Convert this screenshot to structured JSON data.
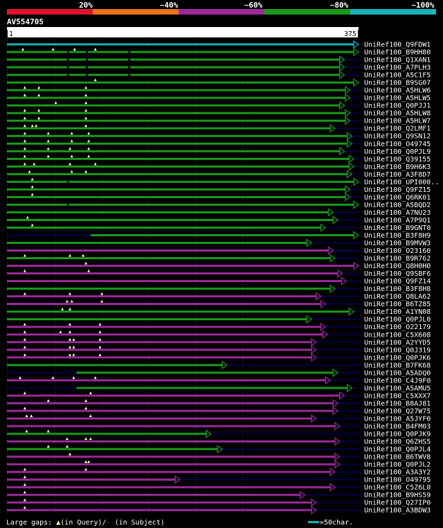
{
  "legend": {
    "bands": [
      {
        "label": "20%",
        "color": "#e0142e"
      },
      {
        "label": "~40%",
        "color": "#e8731a"
      },
      {
        "label": "~60%",
        "color": "#9b2a9b"
      },
      {
        "label": "~80%",
        "color": "#1a9b1a"
      },
      {
        "label": "~100%",
        "color": "#17b3b8"
      }
    ]
  },
  "query": {
    "accession": "AV554705",
    "start": "1",
    "end": "375",
    "length": 375
  },
  "colors": {
    "green": "#1a9b1a",
    "purple": "#9b2a9b",
    "cyan": "#17b3b8",
    "gap": "#000088",
    "tri": "#ffffaa"
  },
  "hits": [
    {
      "name": "UniRef100_Q9FDW1",
      "color": "cyan",
      "start": 1,
      "end": 375,
      "gaps": [],
      "tris": []
    },
    {
      "name": "UniRef100_B9HH80",
      "color": "green",
      "start": 1,
      "end": 375,
      "gaps": [
        65,
        85,
        130
      ],
      "tris": [
        18,
        50,
        73,
        95
      ]
    },
    {
      "name": "UniRef100_Q1XAN1",
      "color": "green",
      "start": 1,
      "end": 360,
      "gaps": [
        65,
        85,
        130
      ],
      "tris": []
    },
    {
      "name": "UniRef100_A7PLH3",
      "color": "green",
      "start": 1,
      "end": 360,
      "gaps": [
        65,
        85,
        130
      ],
      "tris": []
    },
    {
      "name": "UniRef100_A5C1F5",
      "color": "green",
      "start": 1,
      "end": 360,
      "gaps": [
        65,
        85,
        130
      ],
      "tris": []
    },
    {
      "name": "UniRef100_B9SG07",
      "color": "green",
      "start": 1,
      "end": 375,
      "gaps": [],
      "tris": [
        95
      ]
    },
    {
      "name": "UniRef100_A5HLW6",
      "color": "green",
      "start": 1,
      "end": 366,
      "gaps": [],
      "tris": [
        20,
        35,
        85
      ]
    },
    {
      "name": "UniRef100_A5HLW5",
      "color": "green",
      "start": 1,
      "end": 366,
      "gaps": [],
      "tris": [
        20,
        35,
        85
      ]
    },
    {
      "name": "UniRef100_Q0PJJ1",
      "color": "green",
      "start": 1,
      "end": 360,
      "gaps": [],
      "tris": [
        53,
        85
      ]
    },
    {
      "name": "UniRef100_A5HLW8",
      "color": "green",
      "start": 1,
      "end": 366,
      "gaps": [],
      "tris": [
        20,
        35,
        85
      ]
    },
    {
      "name": "UniRef100_A5HLW7",
      "color": "green",
      "start": 1,
      "end": 366,
      "gaps": [],
      "tris": [
        20,
        35,
        85
      ]
    },
    {
      "name": "UniRef100_Q2LMF1",
      "color": "green",
      "start": 1,
      "end": 350,
      "gaps": [],
      "tris": [
        20,
        28,
        32,
        85
      ]
    },
    {
      "name": "UniRef100_Q9SN12",
      "color": "green",
      "start": 1,
      "end": 368,
      "gaps": [],
      "tris": [
        20,
        45,
        70,
        88
      ]
    },
    {
      "name": "UniRef100_O49745",
      "color": "green",
      "start": 1,
      "end": 368,
      "gaps": [],
      "tris": [
        20,
        45,
        70,
        88
      ]
    },
    {
      "name": "UniRef100_Q0PJL9",
      "color": "green",
      "start": 1,
      "end": 360,
      "gaps": [],
      "tris": [
        20,
        45,
        68,
        88
      ]
    },
    {
      "name": "UniRef100_Q39155",
      "color": "green",
      "start": 1,
      "end": 370,
      "gaps": [],
      "tris": [
        20,
        45,
        70,
        88
      ]
    },
    {
      "name": "UniRef100_B9H6K3",
      "color": "green",
      "start": 1,
      "end": 370,
      "gaps": [],
      "tris": [
        20,
        30,
        68,
        95
      ]
    },
    {
      "name": "UniRef100_A3F8D7",
      "color": "green",
      "start": 1,
      "end": 368,
      "gaps": [],
      "tris": [
        25,
        70,
        85
      ]
    },
    {
      "name": "UniRef100_UPI000..",
      "color": "green",
      "start": 1,
      "end": 375,
      "gaps": [
        65
      ],
      "tris": [
        28
      ]
    },
    {
      "name": "UniRef100_Q9FZ15",
      "color": "green",
      "start": 1,
      "end": 366,
      "gaps": [],
      "tris": [
        28
      ]
    },
    {
      "name": "UniRef100_Q6RK01",
      "color": "green",
      "start": 1,
      "end": 366,
      "gaps": [],
      "tris": [
        28
      ]
    },
    {
      "name": "UniRef100_A5BQD2",
      "color": "green",
      "start": 1,
      "end": 375,
      "gaps": [
        65
      ],
      "tris": []
    },
    {
      "name": "UniRef100_A7NU23",
      "color": "green",
      "start": 1,
      "end": 348,
      "gaps": [],
      "tris": []
    },
    {
      "name": "UniRef100_A7P9Q1",
      "color": "green",
      "start": 1,
      "end": 353,
      "gaps": [],
      "tris": [
        23
      ]
    },
    {
      "name": "UniRef100_B9GNT0",
      "color": "green",
      "start": 1,
      "end": 340,
      "gaps": [],
      "tris": [
        28
      ]
    },
    {
      "name": "UniRef100_B3F8H9",
      "color": "green",
      "start": 90,
      "end": 375,
      "gaps": [],
      "tris": []
    },
    {
      "name": "UniRef100_B9MVW3",
      "color": "green",
      "start": 1,
      "end": 325,
      "gaps": [],
      "tris": []
    },
    {
      "name": "UniRef100_O23160",
      "color": "purple",
      "start": 1,
      "end": 348,
      "gaps": [],
      "tris": []
    },
    {
      "name": "UniRef100_B9R762",
      "color": "green",
      "start": 1,
      "end": 350,
      "gaps": [],
      "tris": [
        20,
        68,
        82
      ]
    },
    {
      "name": "UniRef100_Q8H0H0",
      "color": "purple",
      "start": 1,
      "end": 375,
      "gaps": [],
      "tris": [
        85
      ]
    },
    {
      "name": "UniRef100_Q9SBF6",
      "color": "purple",
      "start": 1,
      "end": 358,
      "gaps": [],
      "tris": [
        20,
        88
      ]
    },
    {
      "name": "UniRef100_Q9FZ14",
      "color": "purple",
      "start": 1,
      "end": 362,
      "gaps": [],
      "tris": []
    },
    {
      "name": "UniRef100_B3F8H8",
      "color": "green",
      "start": 1,
      "end": 350,
      "gaps": [],
      "tris": []
    },
    {
      "name": "UniRef100_Q8LA62",
      "color": "purple",
      "start": 1,
      "end": 335,
      "gaps": [],
      "tris": [
        20,
        68,
        102
      ]
    },
    {
      "name": "UniRef100_B6TZ85",
      "color": "purple",
      "start": 1,
      "end": 340,
      "gaps": [],
      "tris": [
        65,
        70,
        102
      ]
    },
    {
      "name": "UniRef100_A1YN08",
      "color": "green",
      "start": 1,
      "end": 370,
      "gaps": [],
      "tris": [
        60,
        68
      ]
    },
    {
      "name": "UniRef100_Q0PJL0",
      "color": "green",
      "start": 1,
      "end": 325,
      "gaps": [],
      "tris": []
    },
    {
      "name": "UniRef100_O22179",
      "color": "purple",
      "start": 1,
      "end": 340,
      "gaps": [],
      "tris": [
        20,
        68,
        100
      ]
    },
    {
      "name": "UniRef100_C5X608",
      "color": "purple",
      "start": 1,
      "end": 342,
      "gaps": [],
      "tris": [
        20,
        58,
        68,
        100
      ]
    },
    {
      "name": "UniRef100_A2YYD5",
      "color": "purple",
      "start": 1,
      "end": 330,
      "gaps": [],
      "tris": [
        20,
        68,
        72,
        100
      ]
    },
    {
      "name": "UniRef100_Q0J319",
      "color": "purple",
      "start": 1,
      "end": 330,
      "gaps": [],
      "tris": [
        20,
        68,
        72,
        100
      ]
    },
    {
      "name": "UniRef100_Q0PJK6",
      "color": "purple",
      "start": 1,
      "end": 330,
      "gaps": [],
      "tris": [
        20,
        68,
        72,
        100
      ]
    },
    {
      "name": "UniRef100_B7FK68",
      "color": "green",
      "start": 1,
      "end": 235,
      "gaps": [],
      "tris": []
    },
    {
      "name": "UniRef100_A5ADQ0",
      "color": "green",
      "start": 75,
      "end": 353,
      "gaps": [],
      "tris": []
    },
    {
      "name": "UniRef100_C4J9F0",
      "color": "purple",
      "start": 1,
      "end": 345,
      "gaps": [],
      "tris": [
        15,
        50,
        72,
        95
      ]
    },
    {
      "name": "UniRef100_A5AMU5",
      "color": "green",
      "start": 75,
      "end": 368,
      "gaps": [],
      "tris": []
    },
    {
      "name": "UniRef100_C5XXX7",
      "color": "purple",
      "start": 1,
      "end": 360,
      "gaps": [],
      "tris": [
        20,
        90
      ]
    },
    {
      "name": "UniRef100_B8AJ81",
      "color": "purple",
      "start": 1,
      "end": 353,
      "gaps": [],
      "tris": [
        45,
        85
      ]
    },
    {
      "name": "UniRef100_Q27W75",
      "color": "purple",
      "start": 1,
      "end": 353,
      "gaps": [],
      "tris": [
        20,
        85
      ]
    },
    {
      "name": "UniRef100_A5JYF0",
      "color": "purple",
      "start": 1,
      "end": 330,
      "gaps": [],
      "tris": [
        22,
        27,
        90
      ]
    },
    {
      "name": "UniRef100_B4FM03",
      "color": "purple",
      "start": 1,
      "end": 355,
      "gaps": [],
      "tris": []
    },
    {
      "name": "UniRef100_Q0PJK9",
      "color": "green",
      "start": 1,
      "end": 218,
      "gaps": [],
      "tris": [
        22,
        45
      ]
    },
    {
      "name": "UniRef100_Q6ZHS5",
      "color": "purple",
      "start": 1,
      "end": 355,
      "gaps": [],
      "tris": [
        65,
        85,
        90
      ]
    },
    {
      "name": "UniRef100_Q0PJL4",
      "color": "green",
      "start": 1,
      "end": 230,
      "gaps": [],
      "tris": [
        45,
        65
      ]
    },
    {
      "name": "UniRef100_B6TWV8",
      "color": "purple",
      "start": 1,
      "end": 355,
      "gaps": [],
      "tris": [
        68
      ]
    },
    {
      "name": "UniRef100_Q0PJL2",
      "color": "purple",
      "start": 1,
      "end": 355,
      "gaps": [],
      "tris": [
        85,
        88
      ]
    },
    {
      "name": "UniRef100_A3A3Y2",
      "color": "purple",
      "start": 1,
      "end": 350,
      "gaps": [],
      "tris": [
        20,
        85
      ]
    },
    {
      "name": "UniRef100_O49795",
      "color": "purple",
      "start": 1,
      "end": 185,
      "gaps": [],
      "tris": [
        20
      ]
    },
    {
      "name": "UniRef100_C5Z6L0",
      "color": "purple",
      "start": 1,
      "end": 350,
      "gaps": [],
      "tris": [
        20
      ]
    },
    {
      "name": "UniRef100_B9HS59",
      "color": "purple",
      "start": 1,
      "end": 318,
      "gaps": [],
      "tris": [
        20
      ]
    },
    {
      "name": "UniRef100_Q27IP0",
      "color": "purple",
      "start": 1,
      "end": 330,
      "gaps": [],
      "tris": [
        20
      ]
    },
    {
      "name": "UniRef100_A3BDW3",
      "color": "purple",
      "start": 1,
      "end": 330,
      "gaps": [],
      "tris": [
        20
      ]
    }
  ],
  "footer": {
    "gaps_prefix": "Large gaps: ",
    "tri_sym": "▲",
    "query_text": "(in Query)/",
    "dash_sym": "-",
    "subject_text": " (in Subject)",
    "scale_text": "=50char."
  }
}
